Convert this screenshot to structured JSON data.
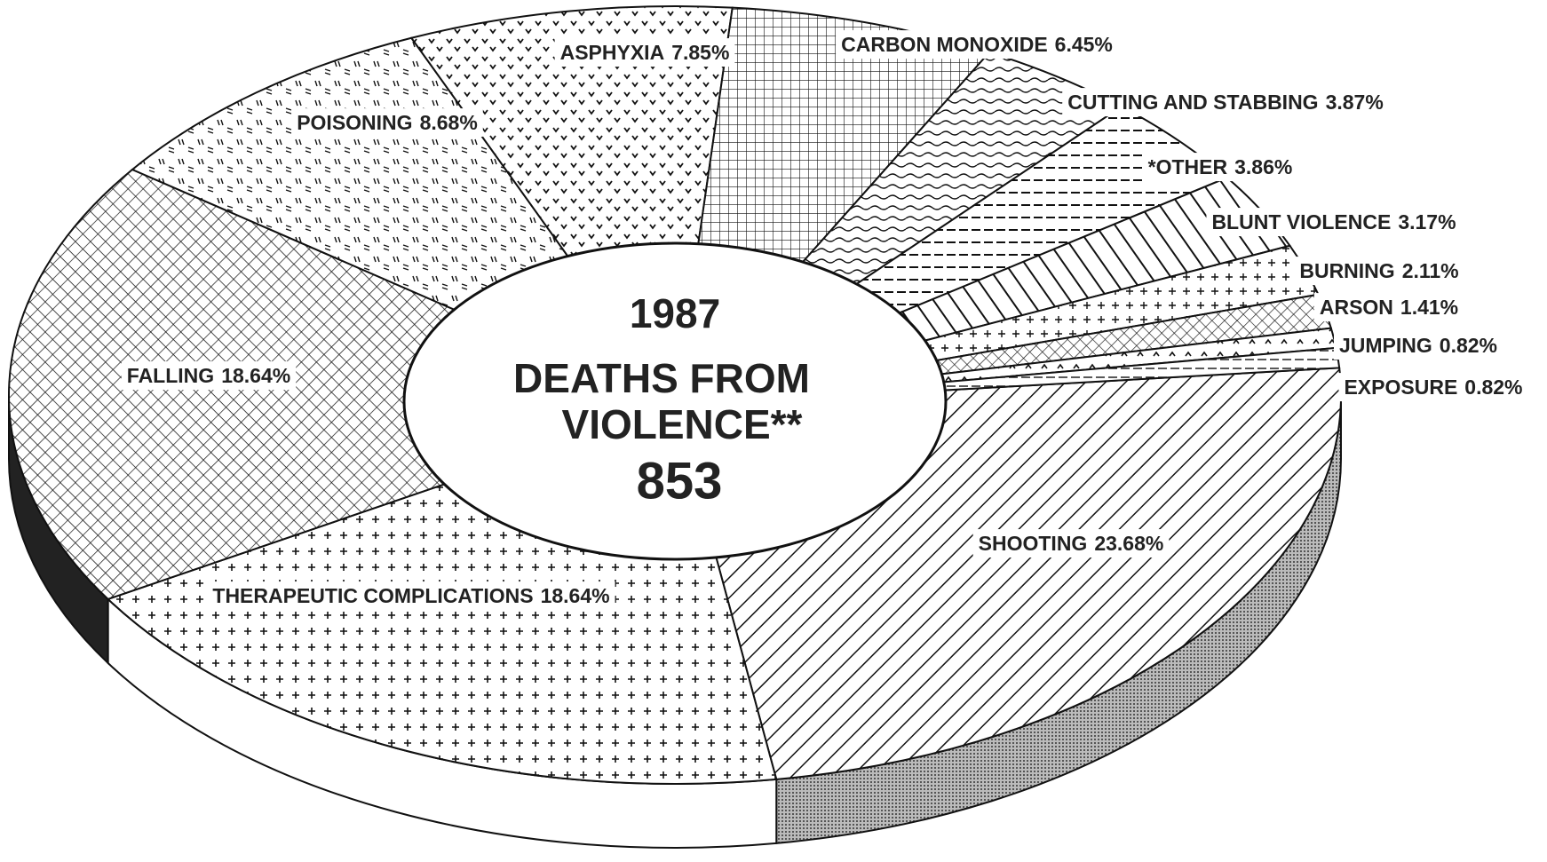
{
  "chart_data": {
    "type": "donut3d",
    "title": "1987",
    "subtitle": [
      "DEATHS FROM",
      "VIOLENCE**"
    ],
    "total": 853,
    "categories": [
      "SHOOTING",
      "THERAPEUTIC COMPLICATIONS",
      "FALLING",
      "POISONING",
      "ASPHYXIA",
      "CARBON MONOXIDE",
      "CUTTING AND STABBING",
      "*OTHER",
      "BLUNT VIOLENCE",
      "BURNING",
      "ARSON",
      "JUMPING",
      "EXPOSURE"
    ],
    "values": [
      23.68,
      18.64,
      18.64,
      8.68,
      7.85,
      6.45,
      3.87,
      3.86,
      3.17,
      2.11,
      1.41,
      0.82,
      0.82
    ],
    "value_labels": [
      "23.68%",
      "18.64%",
      "18.64%",
      "8.68%",
      "7.85%",
      "6.45%",
      "3.87%",
      "3.86%",
      "3.17%",
      "2.11%",
      "1.41%",
      "0.82%",
      "0.82%"
    ]
  }
}
